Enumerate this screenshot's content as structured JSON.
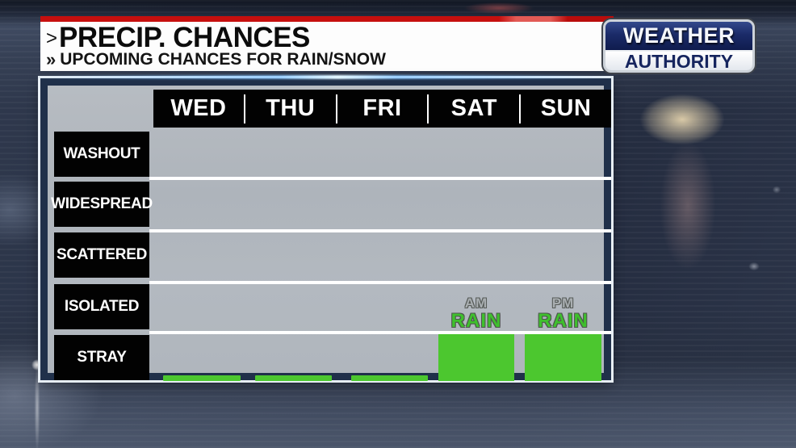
{
  "header": {
    "arrow": ">",
    "title": "PRECIP. CHANCES",
    "subtitle_arrow": "»",
    "subtitle": "UPCOMING CHANCES FOR RAIN/SNOW"
  },
  "logo": {
    "top": "WEATHER",
    "bottom": "AUTHORITY"
  },
  "days": [
    "WED",
    "THU",
    "FRI",
    "SAT",
    "SUN"
  ],
  "levels": [
    "WASHOUT",
    "WIDESPREAD",
    "SCATTERED",
    "ISOLATED",
    "STRAY"
  ],
  "annotations": {
    "sat_top": "AM",
    "sat_main": "RAIN",
    "sun_top": "PM",
    "sun_main": "RAIN"
  },
  "colors": {
    "bar_green": "#4cc72f",
    "frame_navy": "#20304a",
    "banner_red": "#c60f0e",
    "row_label_bg": "#020202",
    "chart_bg_gray": "#b2b8bf"
  },
  "chart_data": {
    "type": "bar",
    "title": "PRECIP. CHANCES",
    "subtitle": "UPCOMING CHANCES FOR RAIN/SNOW",
    "categories": [
      "WED",
      "THU",
      "FRI",
      "SAT",
      "SUN"
    ],
    "y_axis_levels_bottom_to_top": [
      "STRAY",
      "ISOLATED",
      "SCATTERED",
      "WIDESPREAD",
      "WASHOUT"
    ],
    "values": [
      {
        "day": "WED",
        "chance_level": "trace (thin strip below STRAY)",
        "annotation": ""
      },
      {
        "day": "THU",
        "chance_level": "trace (thin strip below STRAY)",
        "annotation": ""
      },
      {
        "day": "FRI",
        "chance_level": "trace (thin strip below STRAY)",
        "annotation": ""
      },
      {
        "day": "SAT",
        "chance_level": "STRAY",
        "annotation": "AM RAIN"
      },
      {
        "day": "SUN",
        "chance_level": "STRAY",
        "annotation": "PM RAIN"
      }
    ],
    "bar_color": "#4cc72f",
    "legend": "none",
    "grid": "horizontal white separator lines between level rows"
  }
}
